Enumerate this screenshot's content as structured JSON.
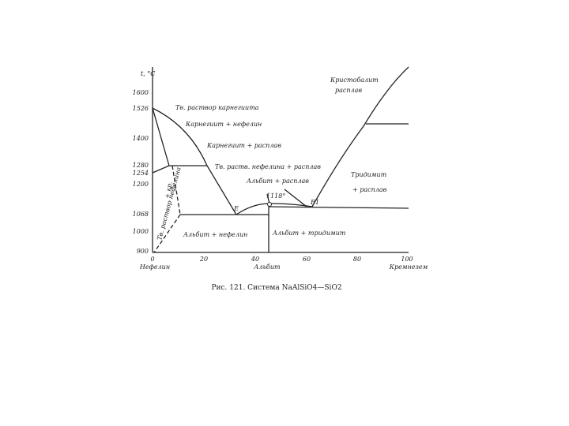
{
  "axis": {
    "y_unit": "t, °C",
    "yticks": [
      "1600",
      "1526",
      "1400",
      "1280",
      "1254",
      "1200",
      "1068",
      "1000",
      "900"
    ],
    "xticks": [
      "0",
      "20",
      "40",
      "60",
      "80",
      "100"
    ],
    "x_labels": [
      "Нефелин",
      "Альбит",
      "Кремнезем"
    ]
  },
  "regions": [
    "Тв. раствор карнегиита",
    "Карнегиит + нефелин",
    "Карнегиит + расплав",
    "Тв. раств. нефелина + расплав",
    "Альбит + расплав",
    "1118°",
    "E",
    "E1",
    "Кристобалит",
    "расплав",
    "Тридимит",
    "+ расплав",
    "Альбит + нефелин",
    "Альбит + тридимит",
    "Тв. раствор нефелина",
    "+ кр."
  ],
  "caption": "Рис. 121. Система NaAlSiO4—SiO2"
}
